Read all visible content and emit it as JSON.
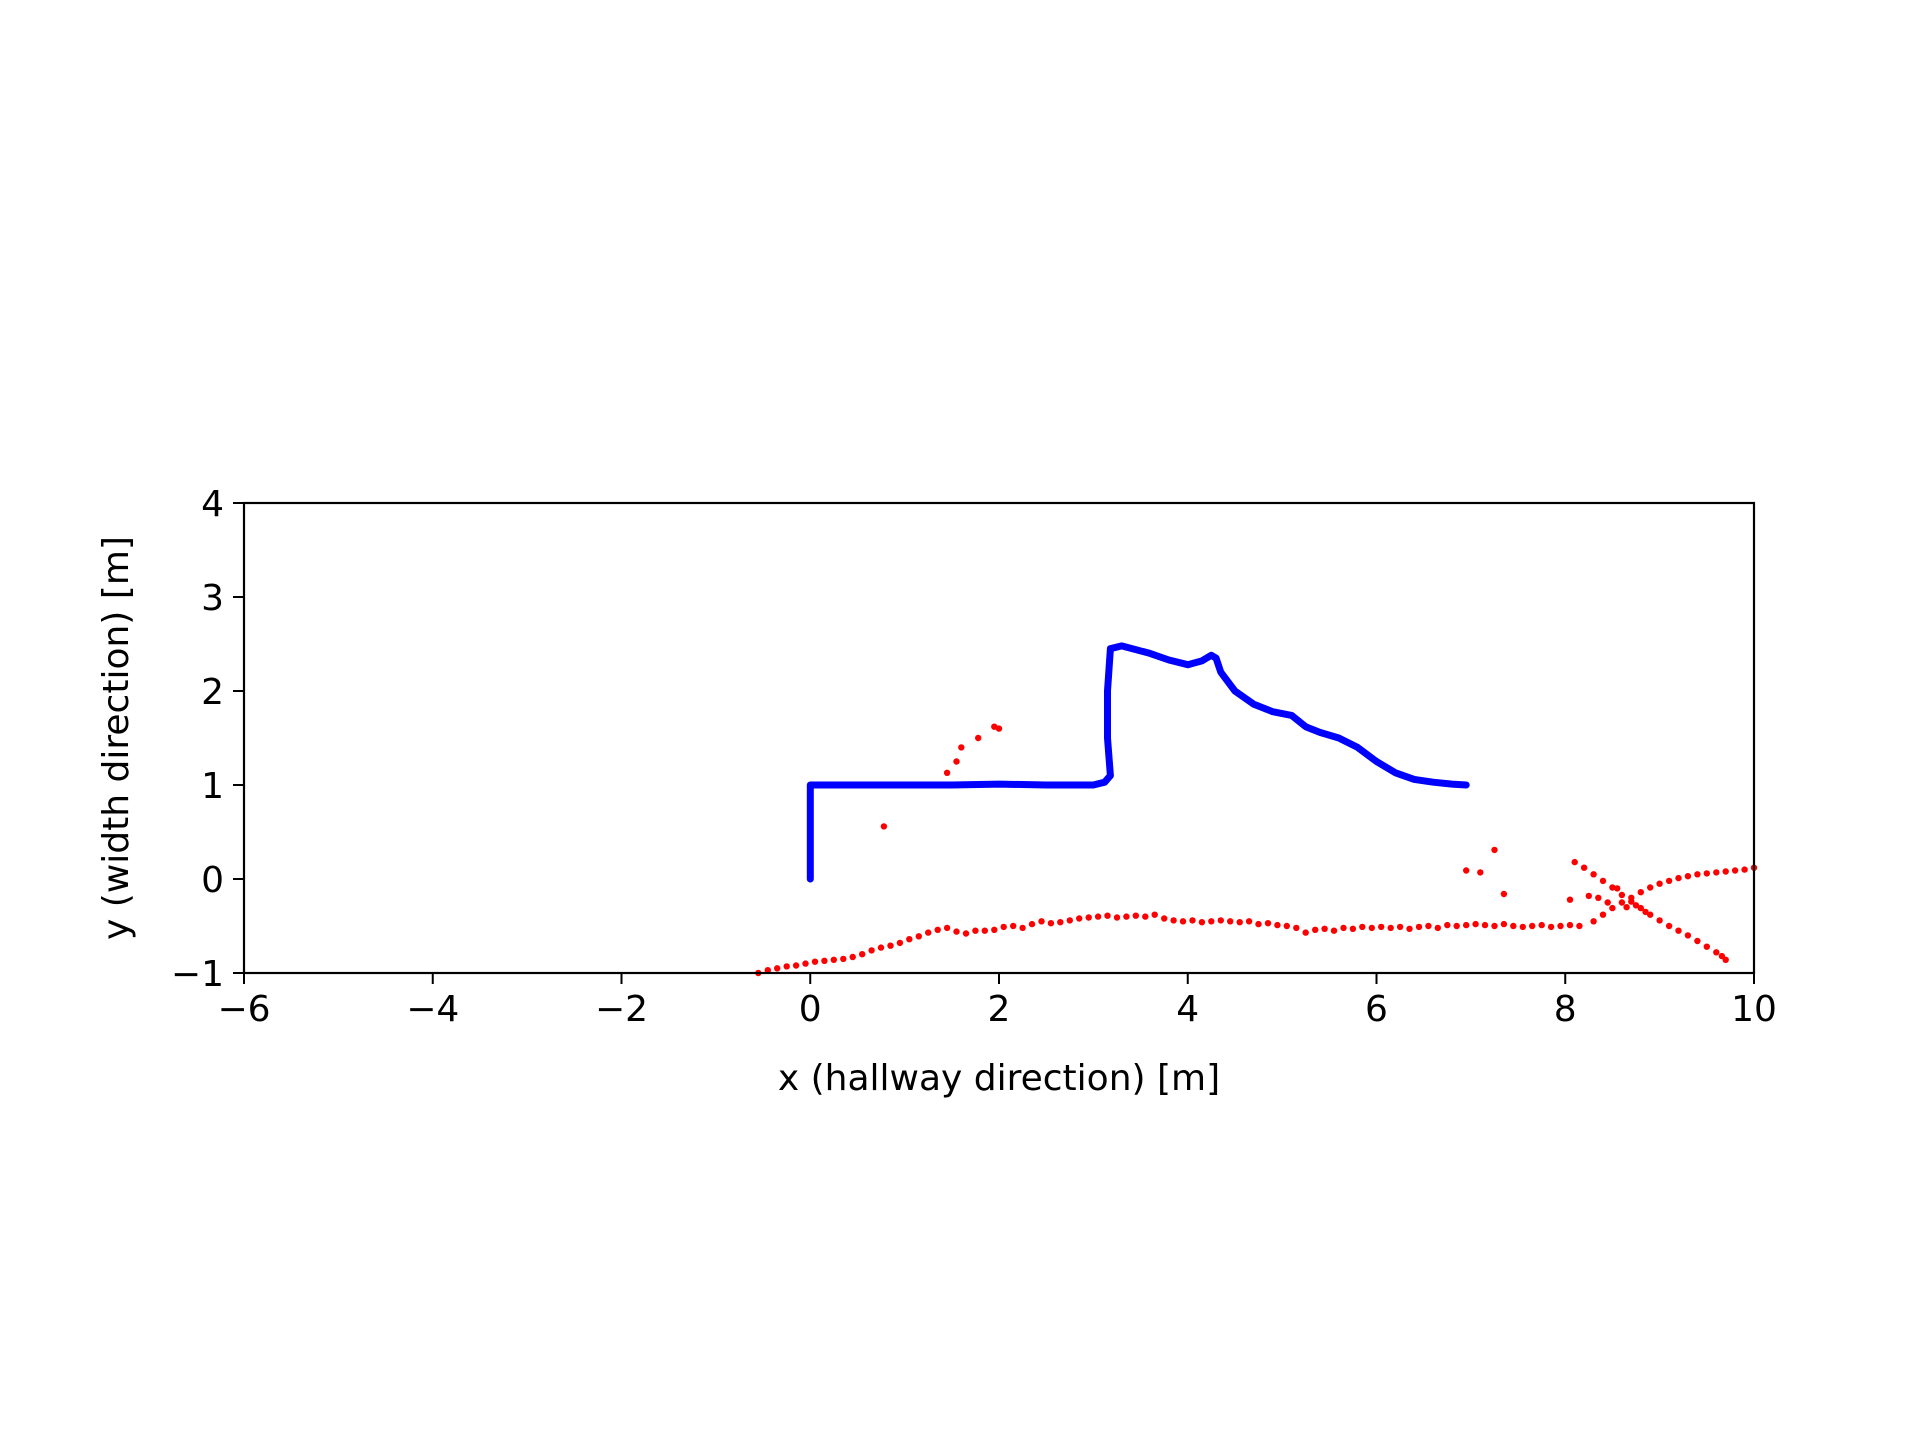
{
  "chart_data": {
    "type": "scatter",
    "title": "",
    "xlabel": "x (hallway direction) [m]",
    "ylabel": "y (width direction) [m]",
    "xlim": [
      -6,
      10
    ],
    "ylim": [
      -1,
      4
    ],
    "xticks": [
      -6,
      -4,
      -2,
      0,
      2,
      4,
      6,
      8,
      10
    ],
    "xtick_labels": [
      "−6",
      "−4",
      "−2",
      "0",
      "2",
      "4",
      "6",
      "8",
      "10"
    ],
    "yticks": [
      -1,
      0,
      1,
      2,
      3,
      4
    ],
    "ytick_labels": [
      "−1",
      "0",
      "1",
      "2",
      "3",
      "4"
    ],
    "grid": false,
    "legend": "none",
    "series": [
      {
        "color": "#ff0000",
        "marker": "dot",
        "points": [
          [
            -0.55,
            -1.0
          ],
          [
            -0.45,
            -0.97
          ],
          [
            -0.35,
            -0.95
          ],
          [
            -0.25,
            -0.93
          ],
          [
            -0.15,
            -0.92
          ],
          [
            -0.05,
            -0.9
          ],
          [
            0.05,
            -0.88
          ],
          [
            0.15,
            -0.87
          ],
          [
            0.25,
            -0.86
          ],
          [
            0.35,
            -0.85
          ],
          [
            0.45,
            -0.83
          ],
          [
            0.55,
            -0.8
          ],
          [
            0.65,
            -0.76
          ],
          [
            0.75,
            -0.73
          ],
          [
            0.85,
            -0.71
          ],
          [
            0.95,
            -0.68
          ],
          [
            1.05,
            -0.64
          ],
          [
            1.15,
            -0.61
          ],
          [
            1.25,
            -0.57
          ],
          [
            1.35,
            -0.54
          ],
          [
            1.45,
            -0.52
          ],
          [
            1.55,
            -0.56
          ],
          [
            1.65,
            -0.58
          ],
          [
            1.75,
            -0.55
          ],
          [
            1.85,
            -0.55
          ],
          [
            1.95,
            -0.54
          ],
          [
            2.05,
            -0.51
          ],
          [
            2.15,
            -0.5
          ],
          [
            2.25,
            -0.52
          ],
          [
            2.35,
            -0.48
          ],
          [
            2.45,
            -0.45
          ],
          [
            2.55,
            -0.47
          ],
          [
            2.65,
            -0.46
          ],
          [
            2.75,
            -0.44
          ],
          [
            2.85,
            -0.42
          ],
          [
            2.95,
            -0.41
          ],
          [
            3.05,
            -0.4
          ],
          [
            3.15,
            -0.39
          ],
          [
            3.25,
            -0.41
          ],
          [
            3.35,
            -0.4
          ],
          [
            3.45,
            -0.39
          ],
          [
            3.55,
            -0.4
          ],
          [
            3.65,
            -0.38
          ],
          [
            3.75,
            -0.42
          ],
          [
            3.85,
            -0.44
          ],
          [
            3.95,
            -0.45
          ],
          [
            4.05,
            -0.44
          ],
          [
            4.15,
            -0.46
          ],
          [
            4.25,
            -0.45
          ],
          [
            4.35,
            -0.44
          ],
          [
            4.45,
            -0.45
          ],
          [
            4.55,
            -0.46
          ],
          [
            4.65,
            -0.45
          ],
          [
            4.75,
            -0.48
          ],
          [
            4.85,
            -0.47
          ],
          [
            4.95,
            -0.49
          ],
          [
            5.05,
            -0.5
          ],
          [
            5.15,
            -0.52
          ],
          [
            5.25,
            -0.57
          ],
          [
            5.35,
            -0.54
          ],
          [
            5.45,
            -0.53
          ],
          [
            5.55,
            -0.55
          ],
          [
            5.65,
            -0.52
          ],
          [
            5.75,
            -0.53
          ],
          [
            5.85,
            -0.51
          ],
          [
            5.95,
            -0.52
          ],
          [
            6.05,
            -0.51
          ],
          [
            6.15,
            -0.52
          ],
          [
            6.25,
            -0.51
          ],
          [
            6.35,
            -0.53
          ],
          [
            6.45,
            -0.51
          ],
          [
            6.55,
            -0.5
          ],
          [
            6.65,
            -0.52
          ],
          [
            6.75,
            -0.49
          ],
          [
            6.85,
            -0.5
          ],
          [
            6.95,
            -0.49
          ],
          [
            7.05,
            -0.48
          ],
          [
            7.15,
            -0.49
          ],
          [
            7.25,
            -0.5
          ],
          [
            7.35,
            -0.48
          ],
          [
            7.45,
            -0.5
          ],
          [
            7.55,
            -0.51
          ],
          [
            7.65,
            -0.5
          ],
          [
            7.75,
            -0.49
          ],
          [
            7.85,
            -0.51
          ],
          [
            7.95,
            -0.5
          ],
          [
            8.05,
            -0.49
          ],
          [
            8.15,
            -0.5
          ],
          [
            8.1,
            0.18
          ],
          [
            8.2,
            0.12
          ],
          [
            8.3,
            0.05
          ],
          [
            8.4,
            -0.02
          ],
          [
            8.5,
            -0.09
          ],
          [
            8.6,
            -0.17
          ],
          [
            8.7,
            -0.24
          ],
          [
            8.8,
            -0.31
          ],
          [
            8.9,
            -0.38
          ],
          [
            9.0,
            -0.44
          ],
          [
            9.1,
            -0.5
          ],
          [
            9.2,
            -0.55
          ],
          [
            9.3,
            -0.6
          ],
          [
            9.4,
            -0.66
          ],
          [
            9.5,
            -0.72
          ],
          [
            9.6,
            -0.78
          ],
          [
            9.66,
            -0.82
          ],
          [
            9.7,
            -0.86
          ],
          [
            8.3,
            -0.45
          ],
          [
            8.4,
            -0.38
          ],
          [
            8.5,
            -0.31
          ],
          [
            8.6,
            -0.25
          ],
          [
            8.7,
            -0.2
          ],
          [
            8.8,
            -0.14
          ],
          [
            8.9,
            -0.09
          ],
          [
            9.0,
            -0.05
          ],
          [
            9.1,
            -0.02
          ],
          [
            9.2,
            0.01
          ],
          [
            9.3,
            0.03
          ],
          [
            9.4,
            0.05
          ],
          [
            9.5,
            0.06
          ],
          [
            9.6,
            0.07
          ],
          [
            9.7,
            0.08
          ],
          [
            9.8,
            0.09
          ],
          [
            9.9,
            0.1
          ],
          [
            10.0,
            0.12
          ],
          [
            8.05,
            -0.22
          ],
          [
            8.25,
            -0.18
          ],
          [
            8.45,
            -0.25
          ],
          [
            8.65,
            -0.3
          ],
          [
            8.35,
            -0.2
          ],
          [
            8.55,
            -0.1
          ],
          [
            8.75,
            -0.28
          ],
          [
            8.85,
            -0.35
          ],
          [
            7.25,
            0.31
          ],
          [
            7.35,
            -0.16
          ],
          [
            6.95,
            0.09
          ],
          [
            7.1,
            0.07
          ],
          [
            0.78,
            0.56
          ],
          [
            1.45,
            1.13
          ],
          [
            1.55,
            1.25
          ],
          [
            1.6,
            1.4
          ],
          [
            1.78,
            1.5
          ],
          [
            1.95,
            1.62
          ],
          [
            2.0,
            1.6
          ],
          [
            0.0,
            0.0
          ]
        ]
      },
      {
        "color": "#0000ff",
        "marker": "thick-line",
        "points": [
          [
            0,
            0
          ],
          [
            0,
            0.3
          ],
          [
            0,
            0.6
          ],
          [
            0,
            1.0
          ],
          [
            0.3,
            1.0
          ],
          [
            0.6,
            1.0
          ],
          [
            1.0,
            1.0
          ],
          [
            1.5,
            1.0
          ],
          [
            2.0,
            1.01
          ],
          [
            2.5,
            1.0
          ],
          [
            3.0,
            1.0
          ],
          [
            3.12,
            1.03
          ],
          [
            3.18,
            1.1
          ],
          [
            3.15,
            1.5
          ],
          [
            3.15,
            2.0
          ],
          [
            3.18,
            2.45
          ],
          [
            3.3,
            2.48
          ],
          [
            3.6,
            2.4
          ],
          [
            3.8,
            2.33
          ],
          [
            4.0,
            2.28
          ],
          [
            4.15,
            2.32
          ],
          [
            4.25,
            2.38
          ],
          [
            4.3,
            2.35
          ],
          [
            4.35,
            2.2
          ],
          [
            4.5,
            2.0
          ],
          [
            4.7,
            1.86
          ],
          [
            4.9,
            1.78
          ],
          [
            5.1,
            1.74
          ],
          [
            5.25,
            1.62
          ],
          [
            5.4,
            1.56
          ],
          [
            5.6,
            1.5
          ],
          [
            5.8,
            1.4
          ],
          [
            6.0,
            1.25
          ],
          [
            6.2,
            1.13
          ],
          [
            6.4,
            1.06
          ],
          [
            6.6,
            1.03
          ],
          [
            6.8,
            1.01
          ],
          [
            6.95,
            1.0
          ]
        ]
      }
    ]
  }
}
